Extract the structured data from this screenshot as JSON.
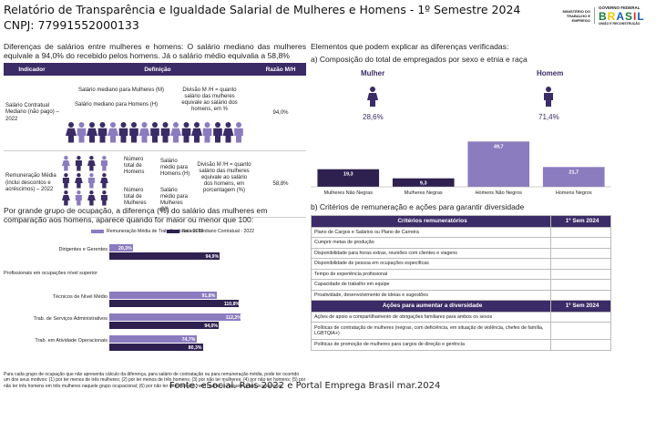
{
  "header": {
    "title": "Relatório de Transparência e Igualdade Salarial de Mulheres e Homens - 1º Semestre 2024",
    "cnpj": "CNPJ: 77991552000133",
    "logo_mte": "MINISTÉRIO DO TRABALHO E EMPREGO",
    "logo_gov": "GOVERNO FEDERAL",
    "logo_brasil": "BRASIL",
    "logo_slogan": "UNIÃO E RECONSTRUÇÃO"
  },
  "left": {
    "intro": "Diferenças de salários entre mulheres e homens: O salário mediano das mulheres equivale a 94,0% do recebido pelos homens. Já o salário médio equivalia a 58,8%",
    "table": {
      "headers": [
        "Indicador",
        "Definição",
        "Razão M/H"
      ],
      "rows": [
        {
          "label": "Salário Contratual Mediano (não pago) – 2022",
          "def_women": "Salário mediano para Mulheres (M)",
          "def_men": "Salário mediano para Homens (H)",
          "def_formula": "Divisão M /H = quanto salário das mulheres equivale ao salário dos homens, em %",
          "ratio": "94,0%"
        },
        {
          "label": "Remuneração Média (inclui descontos e acréscimos) – 2022",
          "def_total_men": "Número total de Homens",
          "def_total_women": "Número total de Mulheres",
          "def_avg_men": "Salário médio para Homens (H)",
          "def_avg_women": "Salário médio para Mulheres (M)",
          "def_formula": "Divisão M /H = quanto salário das mulheres equivale ao salário dos homens, em porcentagem (%)",
          "ratio": "58,8%"
        }
      ]
    },
    "occupation_intro": "Por grande grupo de ocupação, a diferença (%) do salário das mulheres em comparação aos homens, aparece quando for maior ou menor que 100:",
    "note": "Para cada grupo de ocupação que não apresenta cálculo da diferença, para salário de contratação ou para remuneração média, pode ter ocorrido um dos seus motivos: (1) por ter menos de três mulheres; (2) por ter menos de três homens; (3) por não ter mulheres; (4) por não ter homens; (5) por não ter três homens em três mulheres naquele grupo ocupacional; (6) por não ter nem homens nem mulheres naquele grupo ocupacional."
  },
  "right": {
    "factors_title": "Elementos que podem explicar as diferenças verificadas:",
    "composition_title": "a) Composição do total de empregados por sexo e etnia e raça",
    "women_label": "Mulher",
    "women_pct": "28,6%",
    "men_label": "Homem",
    "men_pct": "71,4%",
    "criteria_title": "b) Critérios de remuneração e ações para garantir diversidade",
    "criteria_table": {
      "header": [
        "Critérios remuneratórios",
        "1º Sem 2024"
      ],
      "rows": [
        "Plano de Cargos e Salários ou Plano de Carreira",
        "Cumprir metas de produção",
        "Disponibilidade para horas extras, reuniões com clientes e viagens",
        "Disponibilidade de pessoa em ocupações específicas",
        "Tempo de experiência profissional",
        "Capacidade de trabalho em equipe",
        "Proatividade, desenvolvimento de ideias e sugestões"
      ]
    },
    "diversity_table": {
      "header": [
        "Ações para aumentar a diversidade",
        "1º Sem 2024"
      ],
      "rows": [
        "Ações de apoio a compartilhamento de obrigações familiares para ambos os sexos",
        "Políticas de contratação de mulheres (negras, com deficiência, em situação de violência, chefes de família, LGBTQIA+)",
        "Políticas de promoção de mulheres para cargos de direção e gerência"
      ]
    }
  },
  "footer": {
    "source": "Fonte: eSocial. Rais 2022 e Portal Emprega Brasil mar.2024"
  },
  "colors": {
    "dark": "#3b2b66",
    "light": "#8b7bbf",
    "figure": "#3b2b66"
  },
  "chart_data": [
    {
      "type": "bar",
      "categories": [
        "Mulheres Não Negras",
        "Mulheres Negras",
        "Homens Não Negros",
        "Homens Negros"
      ],
      "values": [
        19.3,
        9.3,
        49.7,
        21.7
      ],
      "value_labels": [
        "19,3",
        "9,3",
        "49,7",
        "21,7"
      ],
      "colors": [
        "#2e2150",
        "#2e2150",
        "#8b7bbf",
        "#8b7bbf"
      ]
    },
    {
      "type": "bar",
      "orientation": "horizontal",
      "categories": [
        "Dirigentes e Gerentes",
        "Profissionais em ocupações nível superior",
        "Técnicos de Nível Médio",
        "Trab. de Serviços Administrativos",
        "Trab. em Atividade Operacionais"
      ],
      "series": [
        {
          "name": "Remuneração Média de Trabalhadores - 2022",
          "values": [
            20.3,
            null,
            91.8,
            112.2,
            74.7
          ],
          "labels": [
            "20,3%",
            "",
            "91,8%",
            "112,2%",
            "74,7%"
          ]
        },
        {
          "name": "Salário Mediano Contratual - 2022",
          "values": [
            94.9,
            null,
            110.8,
            94.0,
            80.3
          ],
          "labels": [
            "94,9%",
            "",
            "110,8%",
            "94,0%",
            "80,3%"
          ]
        }
      ],
      "colors": [
        "#8b7bbf",
        "#2e2150"
      ],
      "xlim": [
        0,
        120
      ]
    }
  ]
}
